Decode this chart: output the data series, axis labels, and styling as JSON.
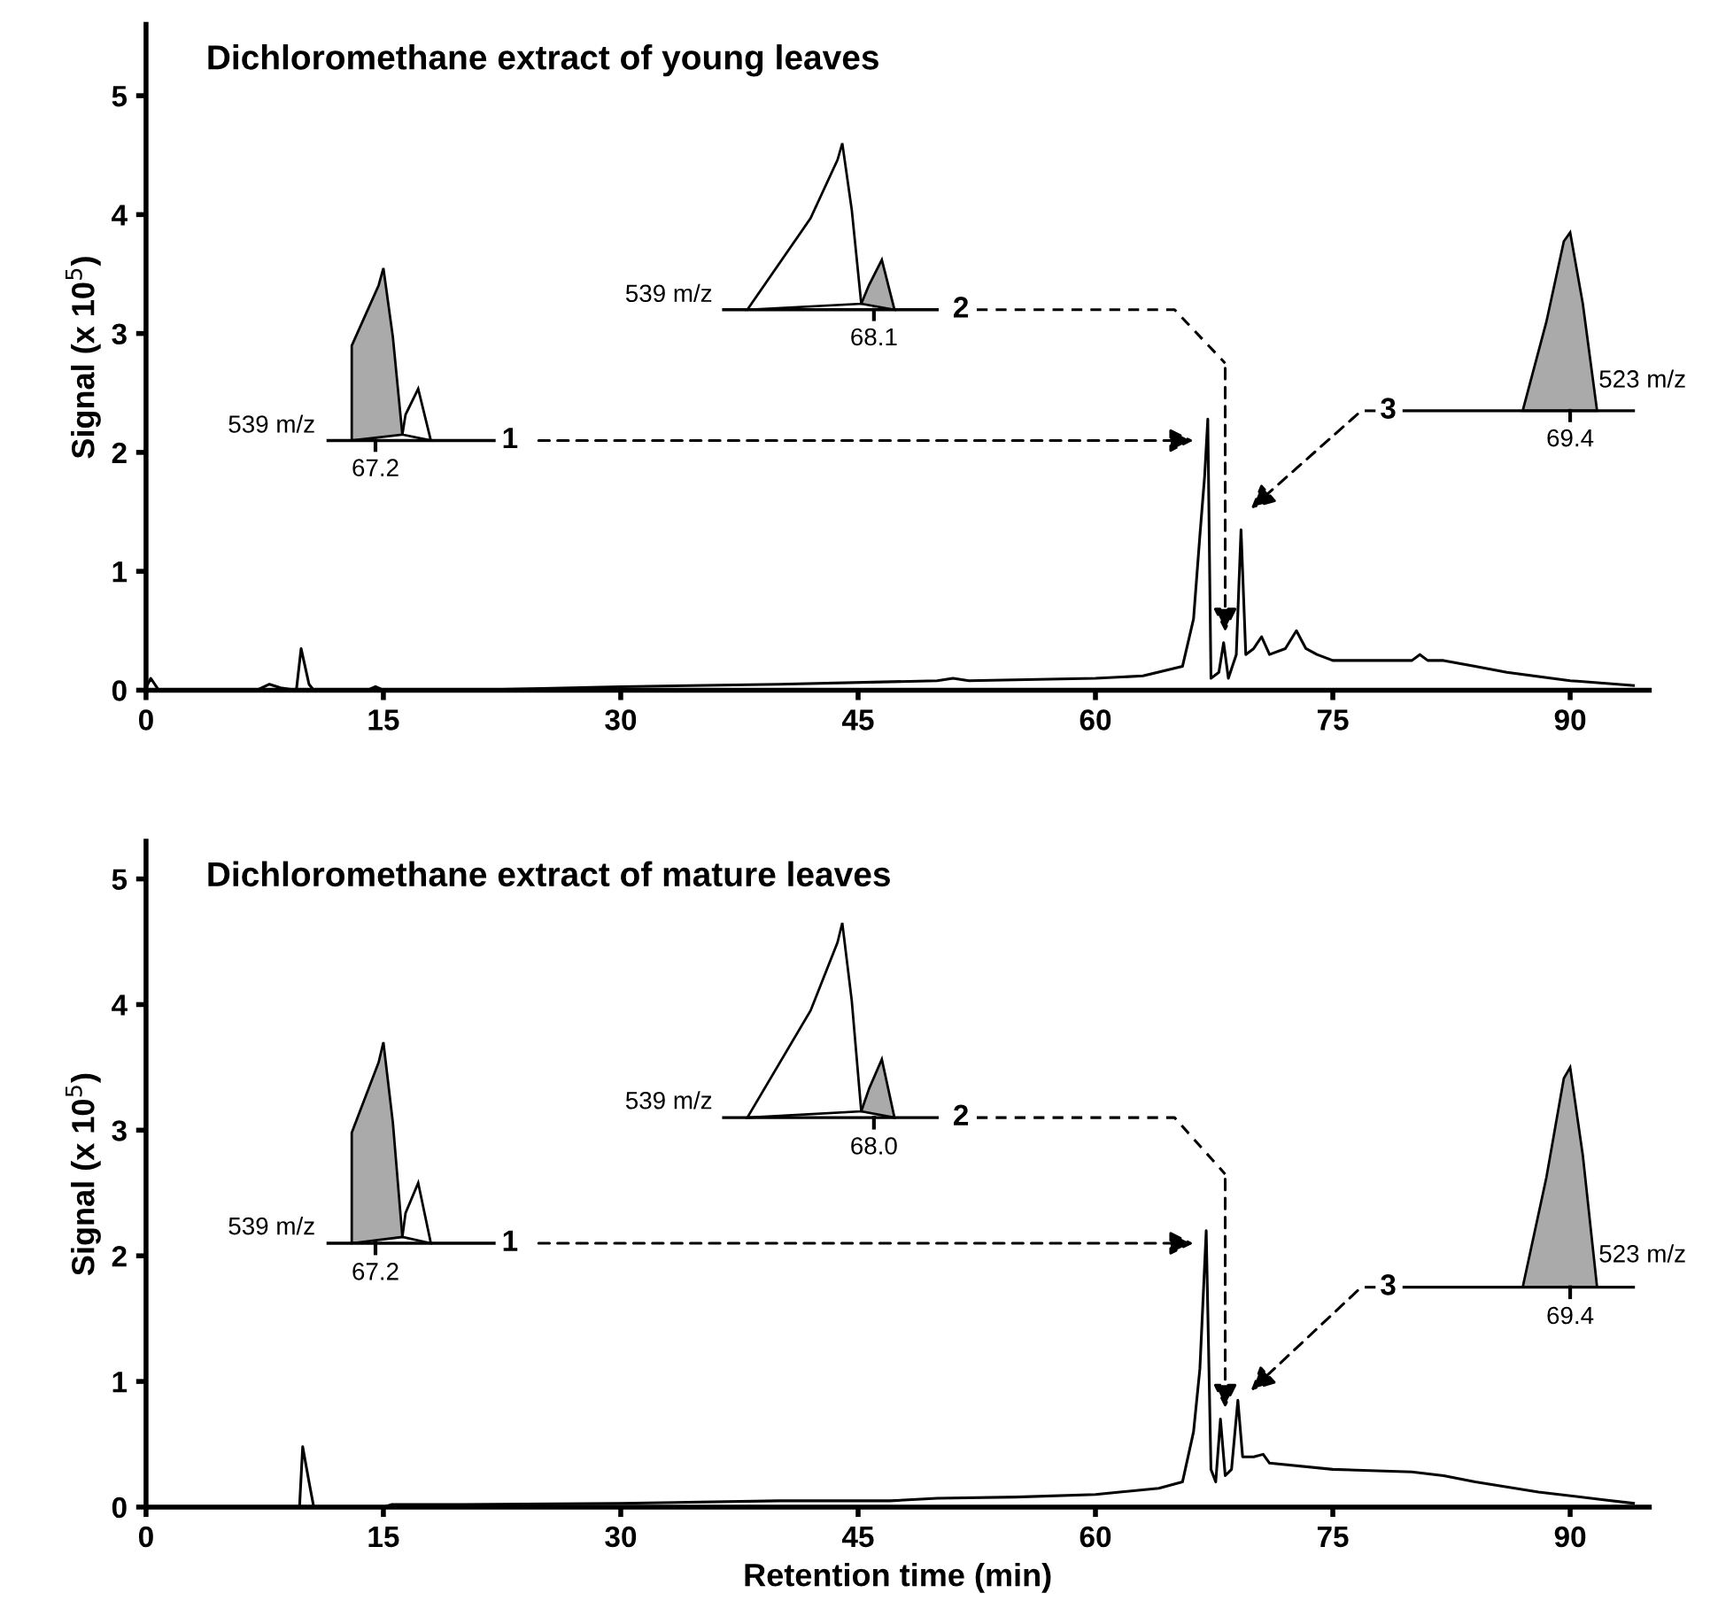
{
  "chart_data": [
    {
      "type": "line",
      "title": "Dichloromethane extract of young leaves",
      "ylabel": "Signal (x 10$^{5}$)",
      "xlim": [
        0,
        95
      ],
      "ylim": [
        0,
        5.6
      ],
      "xticks": [
        0,
        15,
        30,
        45,
        60,
        75,
        90
      ],
      "yticks": [
        0,
        1,
        2,
        3,
        4,
        5
      ],
      "legend": false,
      "grid": false,
      "marker": "none",
      "line_style": "solid",
      "series": [
        {
          "color": "#000000",
          "x": [
            0,
            0.3,
            0.8,
            7,
            7.8,
            8.5,
            9.5,
            9.8,
            10.3,
            10.6,
            14,
            14.5,
            15,
            20,
            30,
            40,
            50,
            51,
            52,
            60,
            63,
            65.5,
            66.2,
            66.6,
            66.9,
            67.1,
            67.3,
            67.8,
            68.1,
            68.4,
            68.9,
            69.2,
            69.5,
            70,
            70.5,
            71,
            72,
            72.7,
            73.3,
            74,
            75,
            80,
            80.5,
            81,
            82,
            84,
            86,
            90,
            94
          ],
          "values": [
            0.02,
            0.1,
            0.0,
            0.0,
            0.05,
            0.02,
            0.0,
            0.35,
            0.05,
            0.0,
            0.0,
            0.03,
            0.0,
            0.0,
            0.03,
            0.05,
            0.08,
            0.1,
            0.08,
            0.1,
            0.12,
            0.2,
            0.6,
            1.3,
            1.8,
            2.28,
            0.1,
            0.15,
            0.4,
            0.1,
            0.3,
            1.35,
            0.3,
            0.35,
            0.45,
            0.3,
            0.35,
            0.5,
            0.35,
            0.3,
            0.25,
            0.25,
            0.3,
            0.25,
            0.25,
            0.2,
            0.15,
            0.08,
            0.04
          ]
        }
      ],
      "annotations": [
        "539 m/z",
        "67.2",
        "1",
        "539 m/z",
        "68.1",
        "2",
        "3",
        "523 m/z",
        "69.4"
      ]
    },
    {
      "type": "line",
      "title": "Dichloromethane extract of mature leaves",
      "ylabel": "Signal (x 10$^{5}$)",
      "xlabel": "Retention time (min)",
      "xlim": [
        0,
        95
      ],
      "ylim": [
        0,
        5.3
      ],
      "xticks": [
        0,
        15,
        30,
        45,
        60,
        75,
        90
      ],
      "yticks": [
        0,
        1,
        2,
        3,
        4,
        5
      ],
      "legend": false,
      "grid": false,
      "marker": "none",
      "line_style": "solid",
      "series": [
        {
          "color": "#000000",
          "x": [
            0,
            9.7,
            9.9,
            10.3,
            10.6,
            15,
            15.5,
            20,
            30,
            40,
            47,
            50,
            55,
            60,
            64,
            65.5,
            66.2,
            66.6,
            67,
            67.3,
            67.6,
            67.9,
            68.2,
            68.6,
            69,
            69.3,
            70,
            70.6,
            71,
            75,
            80,
            82,
            84,
            88,
            92,
            94
          ],
          "values": [
            0,
            0.0,
            0.48,
            0.2,
            0.0,
            0.0,
            0.02,
            0.02,
            0.03,
            0.05,
            0.05,
            0.07,
            0.08,
            0.1,
            0.15,
            0.2,
            0.6,
            1.1,
            2.2,
            0.3,
            0.2,
            0.7,
            0.25,
            0.3,
            0.85,
            0.4,
            0.4,
            0.42,
            0.35,
            0.3,
            0.28,
            0.25,
            0.2,
            0.12,
            0.06,
            0.03
          ]
        }
      ],
      "annotations": [
        "539 m/z",
        "67.2",
        "1",
        "539 m/z",
        "68.0",
        "2",
        "3",
        "523 m/z",
        "69.4"
      ]
    }
  ]
}
